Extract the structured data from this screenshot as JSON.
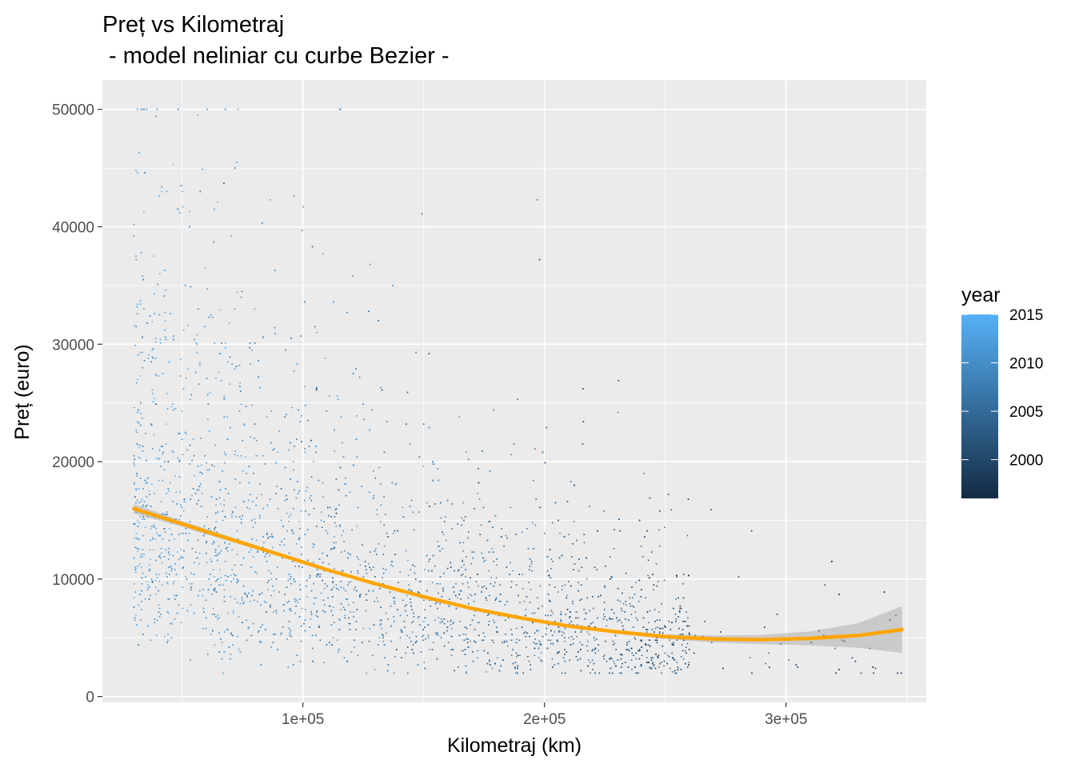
{
  "chart_data": {
    "type": "scatter",
    "title": "Preț vs Kilometraj",
    "subtitle": " - model neliniar cu curbe Bezier -",
    "xlabel": "Kilometraj (km)",
    "ylabel": "Preț (euro)",
    "xlim": [
      17000,
      358000
    ],
    "ylim": [
      -500,
      52500
    ],
    "x_ticks": [
      100000,
      200000,
      300000
    ],
    "x_tick_labels": [
      "1e+05",
      "2e+05",
      "3e+05"
    ],
    "y_ticks": [
      0,
      10000,
      20000,
      30000,
      40000,
      50000
    ],
    "y_tick_labels": [
      "0",
      "10000",
      "20000",
      "30000",
      "40000",
      "50000"
    ],
    "grid": true,
    "panel_background": "#ebebeb",
    "grid_color": "#ffffff",
    "legend": {
      "title": "year",
      "position": "right",
      "type": "colorbar",
      "range": [
        1996,
        2015
      ],
      "breaks": [
        2015,
        2010,
        2005,
        2000
      ],
      "labels": [
        "2015",
        "2010",
        "2005",
        "2000"
      ],
      "color_low": "#132b43",
      "color_high": "#56b1f7"
    },
    "point_series": {
      "name": "listings",
      "n_points": 6000,
      "x_range": [
        30000,
        350000
      ],
      "y_range": [
        2000,
        50000
      ],
      "note_color_by": "year"
    },
    "smooth": {
      "color": "#ffa500",
      "ribbon_color": "#999999",
      "x": [
        30000,
        50000,
        70000,
        90000,
        110000,
        130000,
        150000,
        170000,
        190000,
        210000,
        230000,
        250000,
        270000,
        290000,
        310000,
        330000,
        348000
      ],
      "y": [
        16000,
        14700,
        13400,
        12100,
        10800,
        9600,
        8500,
        7500,
        6700,
        6000,
        5500,
        5100,
        4900,
        4850,
        4950,
        5200,
        5700
      ],
      "lower": [
        15600,
        14450,
        13200,
        11950,
        10700,
        9500,
        8400,
        7400,
        6600,
        5900,
        5350,
        4900,
        4600,
        4450,
        4350,
        4150,
        3700
      ],
      "upper": [
        16400,
        14950,
        13600,
        12250,
        10900,
        9700,
        8600,
        7600,
        6800,
        6100,
        5650,
        5300,
        5200,
        5250,
        5550,
        6250,
        7700
      ]
    }
  }
}
